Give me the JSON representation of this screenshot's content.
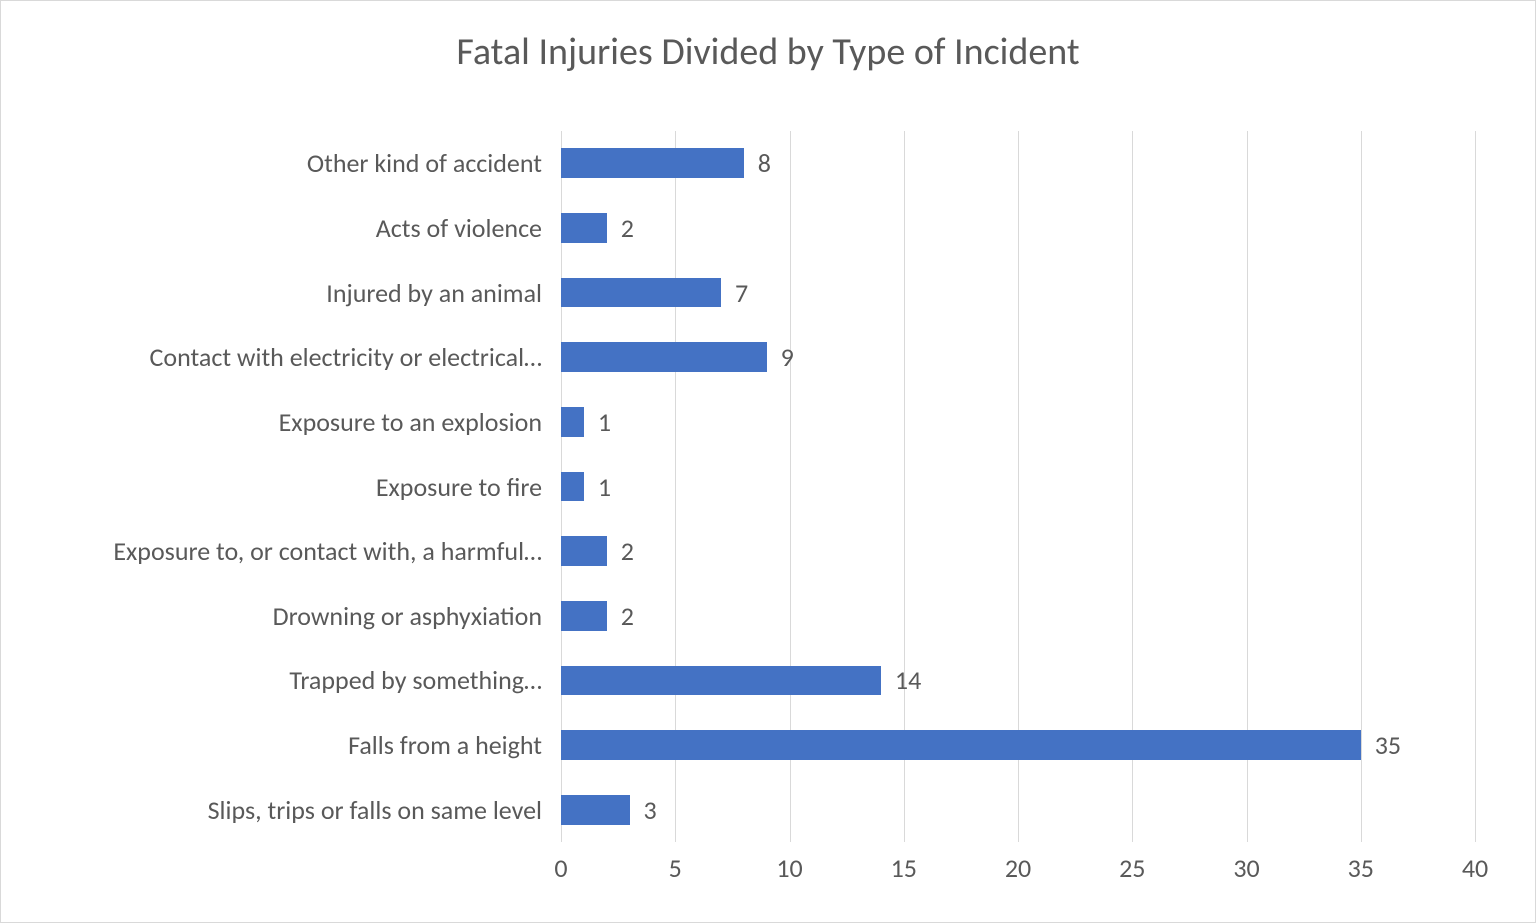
{
  "chart": {
    "type": "bar-horizontal",
    "title": "Fatal Injuries Divided by Type of Incident",
    "title_fontsize": 38,
    "title_color": "#595959",
    "categories": [
      "Other kind of accident",
      "Acts of violence",
      "Injured by an animal",
      "Contact with electricity or electrical…",
      "Exposure to an explosion",
      "Exposure to fire",
      "Exposure to, or contact with, a harmful…",
      "Drowning or asphyxiation",
      "Trapped by something…",
      "Falls from a height",
      "Slips, trips or falls on same level"
    ],
    "values": [
      8,
      2,
      7,
      9,
      1,
      1,
      2,
      2,
      14,
      35,
      3
    ],
    "bar_color": "#4472c4",
    "value_label_color": "#595959",
    "axis_label_color": "#595959",
    "label_fontsize": 26,
    "value_fontsize": 26,
    "tick_fontsize": 26,
    "xlim": [
      0,
      40
    ],
    "xtick_step": 5,
    "xticks": [
      0,
      5,
      10,
      15,
      20,
      25,
      30,
      35,
      40
    ],
    "grid_color": "#d9d9d9",
    "background_color": "#ffffff",
    "border_color": "#d9d9d9",
    "bar_height_ratio": 0.46
  }
}
